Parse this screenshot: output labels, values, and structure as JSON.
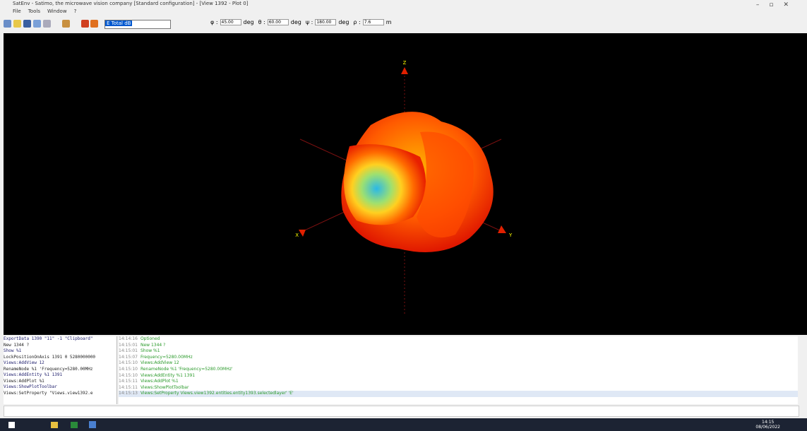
{
  "window": {
    "title": "SatEnv - Satimo, the microwave vision company [Standard configuration] - [View 1392 - Plot 0]",
    "menu": [
      "File",
      "Tools",
      "Window",
      "?"
    ]
  },
  "toolbar": {
    "field": "E Total dB",
    "angles": [
      {
        "symbol": "φ :",
        "value": "45.00",
        "unit": "deg"
      },
      {
        "symbol": "θ :",
        "value": "60.00",
        "unit": "deg"
      },
      {
        "symbol": "ψ :",
        "value": "180.00",
        "unit": "deg"
      },
      {
        "symbol": "ρ :",
        "value": "7.6",
        "unit": "m"
      }
    ]
  },
  "viewport": {
    "axes": [
      "Z",
      "X",
      "Y"
    ]
  },
  "console": {
    "commands": [
      "ExportData 1390 \"11\" -1 \"Clipboard\"",
      "New 1344 ?",
      "Show %1",
      "LockPositionOnAxis 1391 0 5280000000",
      "Views:AddView 12",
      "RenameNode %1 'Frequency=5280.00MHz",
      "Views:AddEntity %1 1391",
      "Views:AddPlot %1",
      "Views:ShowPlotToolbar",
      "Views:SetProperty \"Views.view1392.e"
    ],
    "log": [
      {
        "time": "14:14:16",
        "text": "Optioned"
      },
      {
        "time": "14:15:01",
        "text": "New 1344 ?"
      },
      {
        "time": "14:15:01",
        "text": "Show %1"
      },
      {
        "time": "14:15:07",
        "text": "Frequency=5280.00MHz"
      },
      {
        "time": "14:15:10",
        "text": "Views:AddView 12"
      },
      {
        "time": "14:15:10",
        "text": "RenameNode %1 'Frequency=5280.00MHz'"
      },
      {
        "time": "14:15:10",
        "text": "Views:AddEntity %1 1391"
      },
      {
        "time": "14:15:11",
        "text": "Views:AddPlot %1"
      },
      {
        "time": "14:15:11",
        "text": "Views:ShowPlotToolbar"
      },
      {
        "time": "14:15:13",
        "text": "Views:SetProperty Views.view1392.entities.entity1393.selectedlayer' 'E'"
      }
    ]
  },
  "taskbar": {
    "time": "14:15",
    "date": "08/06/2022"
  }
}
